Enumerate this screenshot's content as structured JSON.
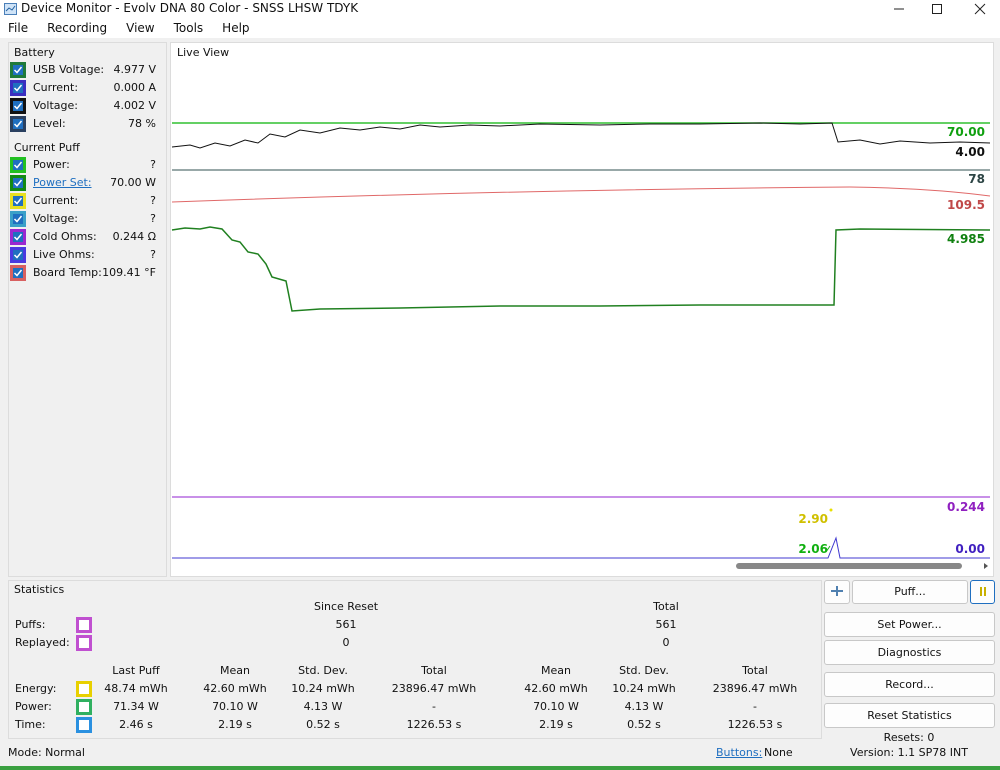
{
  "window": {
    "title": "Device Monitor - Evolv DNA 80 Color - SNSS LHSW TDYK"
  },
  "menu": [
    "File",
    "Recording",
    "View",
    "Tools",
    "Help"
  ],
  "battery": {
    "title": "Battery",
    "rows": [
      {
        "label": "USB Voltage:",
        "value": "4.977 V",
        "color": "#1f7a3a"
      },
      {
        "label": "Current:",
        "value": "0.000 A",
        "color": "#3a2fc0"
      },
      {
        "label": "Voltage:",
        "value": "4.002 V",
        "color": "#111111"
      },
      {
        "label": "Level:",
        "value": "78 %",
        "color": "#2a4060"
      }
    ]
  },
  "current_puff": {
    "title": "Current Puff",
    "rows": [
      {
        "label": "Power:",
        "value": "?",
        "color": "#22c022"
      },
      {
        "label": "Power Set:",
        "value": "70.00 W",
        "color": "#138a13",
        "link": true
      },
      {
        "label": "Current:",
        "value": "?",
        "color": "#e8e020"
      },
      {
        "label": "Voltage:",
        "value": "?",
        "color": "#3aa0c8"
      },
      {
        "label": "Cold Ohms:",
        "value": "0.244 Ω",
        "color": "#9a28d0"
      },
      {
        "label": "Live Ohms:",
        "value": "?",
        "color": "#4a3ae0"
      },
      {
        "label": "Board Temp:",
        "value": "109.41 °F",
        "color": "#d86060"
      }
    ]
  },
  "live_view": {
    "title": "Live View",
    "labels": [
      {
        "text": "70.00",
        "color": "#10a010"
      },
      {
        "text": "4.00",
        "color": "#111111"
      },
      {
        "text": "78",
        "color": "#2c4444"
      },
      {
        "text": "109.5",
        "color": "#c04848"
      },
      {
        "text": "4.985",
        "color": "#108010"
      },
      {
        "text": "0.244",
        "color": "#9020c0"
      },
      {
        "text": "2.90",
        "color": "#d0c000"
      },
      {
        "text": "2.06",
        "color": "#10b010"
      },
      {
        "text": "0.00",
        "color": "#4020c0"
      }
    ]
  },
  "statistics": {
    "title": "Statistics",
    "groups": [
      "Since Reset",
      "Total"
    ],
    "counts": [
      {
        "label": "Puffs:",
        "color": "#c050d0",
        "values": [
          "561",
          "561"
        ]
      },
      {
        "label": "Replayed:",
        "color": "#c050d0",
        "values": [
          "0",
          "0"
        ]
      }
    ],
    "columns": [
      "Last Puff",
      "Mean",
      "Std. Dev.",
      "Total",
      "Mean",
      "Std. Dev.",
      "Total"
    ],
    "rows": [
      {
        "label": "Energy:",
        "color": "#e8d000",
        "values": [
          "48.74 mWh",
          "42.60 mWh",
          "10.24 mWh",
          "23896.47 mWh",
          "42.60 mWh",
          "10.24 mWh",
          "23896.47 mWh"
        ]
      },
      {
        "label": "Power:",
        "color": "#30b060",
        "values": [
          "71.34 W",
          "70.10 W",
          "4.13 W",
          "-",
          "70.10 W",
          "4.13 W",
          "-"
        ]
      },
      {
        "label": "Time:",
        "color": "#2a90e0",
        "values": [
          "2.46 s",
          "2.19 s",
          "0.52 s",
          "1226.53 s",
          "2.19 s",
          "0.52 s",
          "1226.53 s"
        ]
      }
    ]
  },
  "buttons": {
    "puff": "Puff...",
    "stack": [
      "Set Power...",
      "Diagnostics",
      "Record...",
      "Reset Statistics"
    ],
    "resets": "Resets: 0",
    "version": "Version: 1.1 SP78 INT"
  },
  "status": {
    "mode": "Mode: Normal",
    "buttons_link": "Buttons:",
    "buttons_value": "None"
  }
}
